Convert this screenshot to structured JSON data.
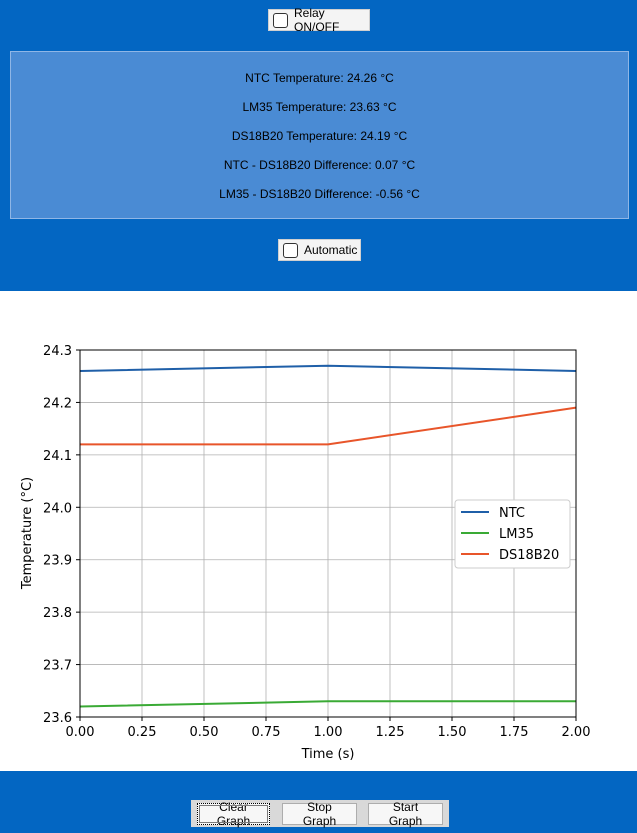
{
  "controls": {
    "relay_label": "Relay ON/OFF",
    "automatic_label": "Automatic"
  },
  "readings": [
    "NTC Temperature: 24.26 °C",
    "LM35 Temperature: 23.63 °C",
    "DS18B20 Temperature: 24.19 °C",
    "NTC - DS18B20 Difference: 0.07 °C",
    "LM35 - DS18B20 Difference: -0.56 °C"
  ],
  "buttons": {
    "clear_label": "Clear Graph",
    "stop_label": "Stop Graph",
    "start_label": "Start Graph"
  },
  "colors": {
    "panel_blue": "#0366c2",
    "ntc": "#1f5fa8",
    "lm35": "#3aaa35",
    "ds18b20": "#e8552a"
  },
  "chart_data": {
    "type": "line",
    "title": "",
    "xlabel": "Time (s)",
    "ylabel": "Temperature (°C)",
    "xlim": [
      0,
      2
    ],
    "ylim": [
      23.6,
      24.3
    ],
    "xticks": [
      "0.00",
      "0.25",
      "0.50",
      "0.75",
      "1.00",
      "1.25",
      "1.50",
      "1.75",
      "2.00"
    ],
    "yticks": [
      "23.6",
      "23.7",
      "23.8",
      "23.9",
      "24.0",
      "24.1",
      "24.2",
      "24.3"
    ],
    "grid": true,
    "legend_position": "center-right",
    "series": [
      {
        "name": "NTC",
        "color": "#1f5fa8",
        "x": [
          0,
          1,
          2
        ],
        "y": [
          24.26,
          24.27,
          24.26
        ]
      },
      {
        "name": "LM35",
        "color": "#3aaa35",
        "x": [
          0,
          1,
          2
        ],
        "y": [
          23.62,
          23.63,
          23.63
        ]
      },
      {
        "name": "DS18B20",
        "color": "#e8552a",
        "x": [
          0,
          1,
          2
        ],
        "y": [
          24.12,
          24.12,
          24.19
        ]
      }
    ]
  }
}
